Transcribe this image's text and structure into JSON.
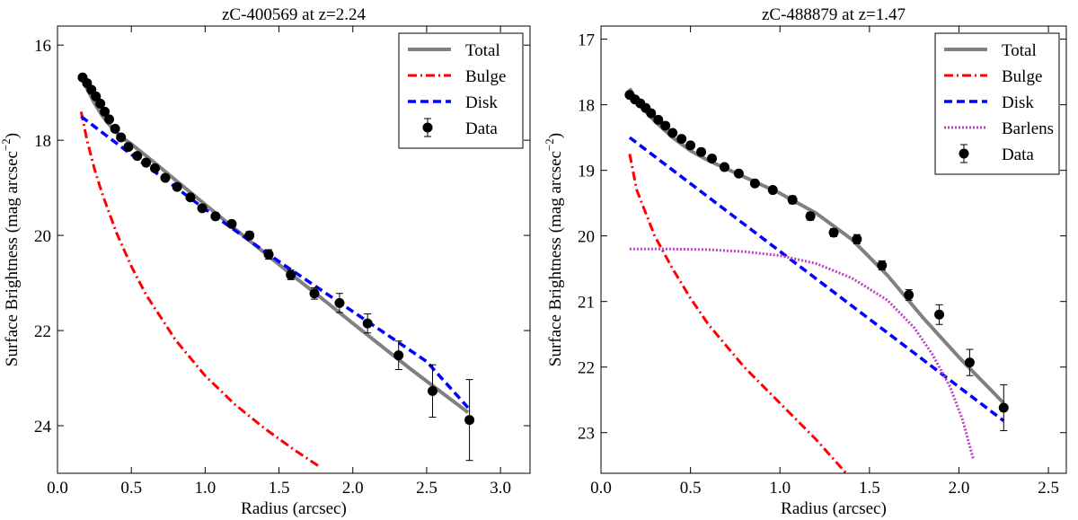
{
  "chart_data": [
    {
      "type": "line",
      "title": "zC-400569 at z=2.24",
      "xlabel": "Radius (arcsec)",
      "ylabel": "Surface Brightness (mag arcsec",
      "ylabel_exp": "−2",
      "ylabel_close": ")",
      "xlim": [
        0.0,
        3.2
      ],
      "ylim": [
        25.0,
        15.6
      ],
      "y_inverted": true,
      "xticks": [
        0.0,
        0.5,
        1.0,
        1.5,
        2.0,
        2.5,
        3.0
      ],
      "xtick_labels": [
        "0.0",
        "0.5",
        "1.0",
        "1.5",
        "2.0",
        "2.5",
        "3.0"
      ],
      "yticks": [
        16,
        18,
        20,
        22,
        24
      ],
      "ytick_labels": [
        "16",
        "18",
        "20",
        "22",
        "24"
      ],
      "legend_position": "top-right",
      "series": [
        {
          "name": "Total",
          "style": "solid",
          "color": "#808080",
          "x": [
            0.16,
            0.2,
            0.25,
            0.3,
            0.35,
            0.4,
            0.45,
            0.5,
            0.6,
            0.7,
            0.8,
            1.0,
            1.2,
            1.4,
            1.6,
            1.8,
            2.0,
            2.2,
            2.4,
            2.6,
            2.78
          ],
          "y": [
            16.65,
            16.92,
            17.22,
            17.47,
            17.67,
            17.84,
            17.97,
            18.08,
            18.33,
            18.58,
            18.84,
            19.35,
            19.86,
            20.36,
            20.86,
            21.35,
            21.85,
            22.34,
            22.83,
            23.3,
            23.72
          ]
        },
        {
          "name": "Bulge",
          "style": "dashdot",
          "color": "#ff0000",
          "x": [
            0.16,
            0.2,
            0.25,
            0.3,
            0.4,
            0.5,
            0.6,
            0.8,
            1.0,
            1.2,
            1.4,
            1.6,
            1.77
          ],
          "y": [
            17.4,
            18.0,
            18.6,
            19.1,
            19.95,
            20.65,
            21.25,
            22.2,
            22.95,
            23.55,
            24.05,
            24.5,
            24.85
          ]
        },
        {
          "name": "Disk",
          "style": "dashed",
          "color": "#0000ff",
          "x": [
            0.16,
            0.5,
            1.0,
            1.5,
            2.0,
            2.5,
            2.78
          ],
          "y": [
            17.5,
            18.3,
            19.45,
            20.55,
            21.6,
            22.65,
            23.62
          ]
        },
        {
          "name": "Data",
          "style": "markers",
          "color": "#000000",
          "x": [
            0.17,
            0.2,
            0.23,
            0.26,
            0.29,
            0.32,
            0.35,
            0.39,
            0.43,
            0.48,
            0.54,
            0.6,
            0.66,
            0.73,
            0.81,
            0.9,
            0.98,
            1.07,
            1.18,
            1.3,
            1.43,
            1.58,
            1.74,
            1.91,
            2.1,
            2.31,
            2.54,
            2.79
          ],
          "y": [
            16.68,
            16.8,
            16.94,
            17.08,
            17.23,
            17.4,
            17.56,
            17.76,
            17.94,
            18.14,
            18.33,
            18.47,
            18.59,
            18.79,
            18.98,
            19.2,
            19.43,
            19.6,
            19.76,
            20.0,
            20.4,
            20.83,
            21.22,
            21.42,
            21.85,
            22.52,
            23.27,
            23.88
          ],
          "yerr": [
            0.03,
            0.03,
            0.03,
            0.03,
            0.03,
            0.03,
            0.04,
            0.04,
            0.04,
            0.04,
            0.04,
            0.05,
            0.05,
            0.05,
            0.06,
            0.06,
            0.06,
            0.07,
            0.07,
            0.08,
            0.1,
            0.1,
            0.12,
            0.2,
            0.2,
            0.3,
            0.55,
            0.85
          ]
        }
      ]
    },
    {
      "type": "line",
      "title": "zC-488879 at z=1.47",
      "xlabel": "Radius (arcsec)",
      "ylabel": "Surface Brightness (mag arcsec",
      "ylabel_exp": "−2",
      "ylabel_close": ")",
      "xlim": [
        0.0,
        2.6
      ],
      "ylim": [
        23.62,
        16.8
      ],
      "y_inverted": true,
      "xticks": [
        0.0,
        0.5,
        1.0,
        1.5,
        2.0,
        2.5
      ],
      "xtick_labels": [
        "0.0",
        "0.5",
        "1.0",
        "1.5",
        "2.0",
        "2.5"
      ],
      "yticks": [
        17,
        18,
        19,
        20,
        21,
        22,
        23
      ],
      "ytick_labels": [
        "17",
        "18",
        "19",
        "20",
        "21",
        "22",
        "23"
      ],
      "legend_position": "top-right",
      "series": [
        {
          "name": "Total",
          "style": "solid",
          "color": "#808080",
          "x": [
            0.16,
            0.2,
            0.3,
            0.4,
            0.5,
            0.6,
            0.8,
            1.0,
            1.2,
            1.4,
            1.6,
            1.8,
            2.0,
            2.25
          ],
          "y": [
            17.75,
            17.95,
            18.25,
            18.5,
            18.7,
            18.85,
            19.1,
            19.35,
            19.65,
            20.05,
            20.6,
            21.25,
            21.85,
            22.55
          ]
        },
        {
          "name": "Bulge",
          "style": "dashdot",
          "color": "#ff0000",
          "x": [
            0.16,
            0.2,
            0.3,
            0.4,
            0.5,
            0.6,
            0.8,
            1.0,
            1.2,
            1.37
          ],
          "y": [
            18.75,
            19.3,
            20.0,
            20.5,
            20.95,
            21.35,
            22.0,
            22.55,
            23.1,
            23.62
          ]
        },
        {
          "name": "Disk",
          "style": "dashed",
          "color": "#0000ff",
          "x": [
            0.16,
            2.25
          ],
          "y": [
            18.5,
            22.82
          ]
        },
        {
          "name": "Barlens",
          "style": "dotted",
          "color": "#bf40bf",
          "x": [
            0.16,
            0.4,
            0.6,
            0.8,
            1.0,
            1.2,
            1.4,
            1.6,
            1.75,
            1.85,
            1.95,
            2.02,
            2.08
          ],
          "y": [
            20.2,
            20.2,
            20.21,
            20.24,
            20.3,
            20.42,
            20.64,
            20.98,
            21.4,
            21.8,
            22.3,
            22.8,
            23.4
          ]
        },
        {
          "name": "Data",
          "style": "markers",
          "color": "#000000",
          "x": [
            0.16,
            0.19,
            0.22,
            0.25,
            0.28,
            0.32,
            0.36,
            0.4,
            0.45,
            0.5,
            0.56,
            0.62,
            0.69,
            0.77,
            0.86,
            0.96,
            1.07,
            1.17,
            1.3,
            1.43,
            1.57,
            1.72,
            1.89,
            2.06,
            2.25
          ],
          "y": [
            17.85,
            17.92,
            17.98,
            18.05,
            18.13,
            18.23,
            18.32,
            18.43,
            18.52,
            18.62,
            18.72,
            18.82,
            18.95,
            19.05,
            19.2,
            19.3,
            19.45,
            19.7,
            19.95,
            20.05,
            20.45,
            20.9,
            21.2,
            21.93,
            22.62
          ],
          "yerr": [
            0.03,
            0.03,
            0.03,
            0.03,
            0.03,
            0.03,
            0.03,
            0.04,
            0.04,
            0.04,
            0.04,
            0.04,
            0.05,
            0.05,
            0.05,
            0.05,
            0.06,
            0.06,
            0.06,
            0.07,
            0.07,
            0.08,
            0.15,
            0.2,
            0.35
          ]
        }
      ]
    }
  ]
}
